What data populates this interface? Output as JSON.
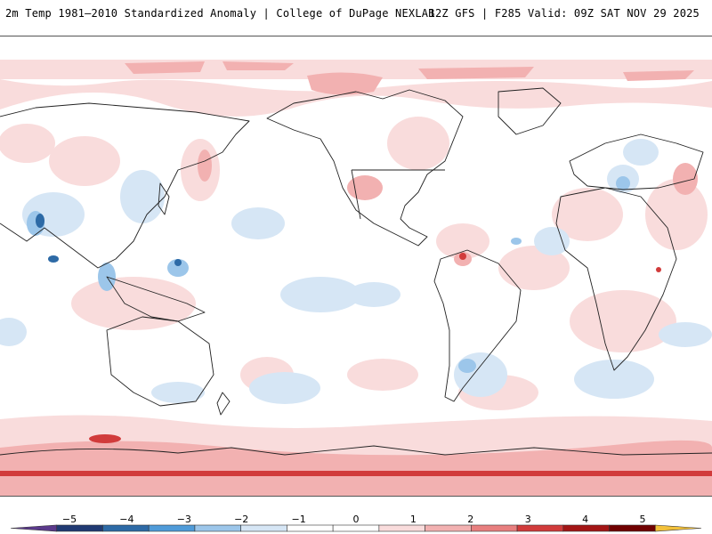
{
  "header": {
    "title_left": "2m Temp 1981–2010 Standardized Anomaly | College of DuPage NEXLAB",
    "title_right": "12Z GFS | F285 Valid: 09Z SAT NOV 29 2025"
  },
  "colorbar": {
    "ticks": [
      "−5",
      "−4",
      "−3",
      "−2",
      "−1",
      "0",
      "1",
      "2",
      "3",
      "4",
      "5"
    ],
    "colors": [
      "#5b3a8c",
      "#203a73",
      "#2d6aa6",
      "#4f9bd9",
      "#9cc6ea",
      "#d6e6f5",
      "#ffffff",
      "#ffffff",
      "#f9dcdc",
      "#f2b1b1",
      "#e87f7f",
      "#d13b3b",
      "#a31515",
      "#700000",
      "#f3c13a"
    ]
  },
  "map": {
    "colors": {
      "ocean": "#ffffff",
      "light_red": "#f9dcdc",
      "red": "#f2b1b1",
      "deep_red": "#d13b3b",
      "light_blue": "#d6e6f5",
      "blue": "#9cc6ea",
      "deep_blue": "#2d6aa6",
      "coast": "#222222"
    }
  }
}
